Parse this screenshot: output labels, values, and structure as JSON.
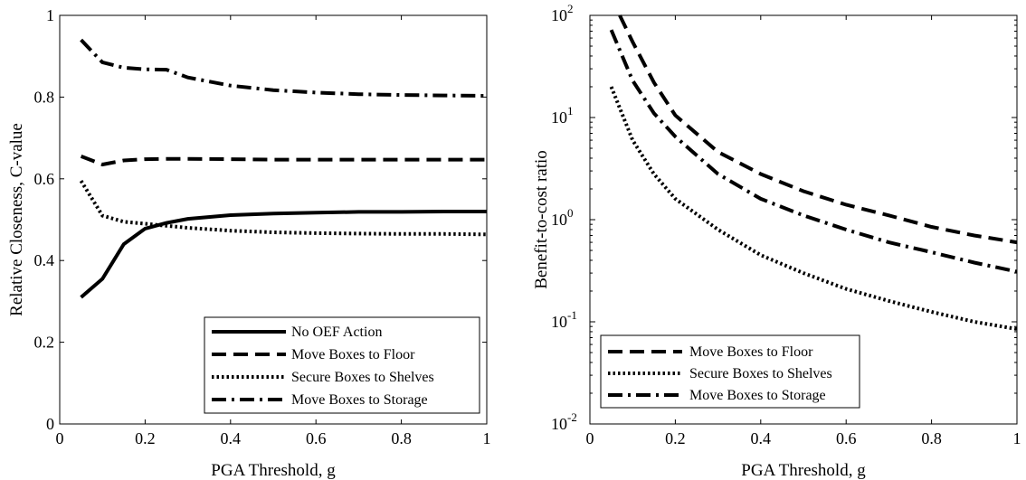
{
  "chart_data": [
    {
      "type": "line",
      "xlabel": "PGA Threshold, g",
      "ylabel": "Relative Closeness, C-value",
      "xlim": [
        0,
        1
      ],
      "ylim": [
        0,
        1
      ],
      "xticks": [
        "0",
        "0.2",
        "0.4",
        "0.6",
        "0.8",
        "1"
      ],
      "yticks": [
        "0",
        "0.2",
        "0.4",
        "0.6",
        "0.8",
        "1"
      ],
      "legend": "bottom-right",
      "grid": false,
      "series": [
        {
          "name": "No OEF Action",
          "style": "solid",
          "x": [
            0.05,
            0.1,
            0.15,
            0.2,
            0.25,
            0.3,
            0.4,
            0.5,
            0.6,
            0.7,
            0.8,
            0.9,
            1.0
          ],
          "y": [
            0.31,
            0.355,
            0.44,
            0.478,
            0.492,
            0.502,
            0.511,
            0.515,
            0.517,
            0.519,
            0.519,
            0.52,
            0.52
          ]
        },
        {
          "name": "Move Boxes to Floor",
          "style": "dashed",
          "x": [
            0.05,
            0.1,
            0.15,
            0.2,
            0.25,
            0.3,
            0.4,
            0.5,
            0.6,
            0.7,
            0.8,
            0.9,
            1.0
          ],
          "y": [
            0.655,
            0.635,
            0.645,
            0.648,
            0.649,
            0.649,
            0.648,
            0.647,
            0.647,
            0.647,
            0.647,
            0.647,
            0.647
          ]
        },
        {
          "name": "Secure Boxes to Shelves",
          "style": "dotted",
          "x": [
            0.05,
            0.1,
            0.15,
            0.2,
            0.25,
            0.3,
            0.4,
            0.5,
            0.6,
            0.7,
            0.8,
            0.9,
            1.0
          ],
          "y": [
            0.595,
            0.51,
            0.495,
            0.49,
            0.485,
            0.48,
            0.473,
            0.469,
            0.467,
            0.466,
            0.465,
            0.465,
            0.464
          ]
        },
        {
          "name": "Move Boxes to Storage",
          "style": "dashdot",
          "x": [
            0.05,
            0.1,
            0.15,
            0.2,
            0.25,
            0.3,
            0.4,
            0.5,
            0.6,
            0.7,
            0.8,
            0.9,
            1.0
          ],
          "y": [
            0.94,
            0.885,
            0.872,
            0.868,
            0.867,
            0.848,
            0.828,
            0.817,
            0.811,
            0.807,
            0.805,
            0.804,
            0.803
          ]
        }
      ]
    },
    {
      "type": "line",
      "xlabel": "PGA Threshold, g",
      "ylabel": "Benefit-to-cost ratio",
      "yscale": "log",
      "xlim": [
        0,
        1
      ],
      "ylim": [
        0.01,
        100
      ],
      "xticks": [
        "0",
        "0.2",
        "0.4",
        "0.6",
        "0.8",
        "1"
      ],
      "yticks": [
        "10-2",
        "10-1",
        "100",
        "101",
        "102"
      ],
      "legend": "bottom-left",
      "grid": false,
      "series": [
        {
          "name": "Move Boxes to Floor",
          "style": "dashed",
          "x": [
            0.07,
            0.1,
            0.15,
            0.2,
            0.3,
            0.4,
            0.5,
            0.6,
            0.7,
            0.8,
            0.9,
            1.0
          ],
          "y": [
            100,
            55,
            22,
            10.5,
            4.6,
            2.8,
            1.9,
            1.4,
            1.1,
            0.85,
            0.7,
            0.6
          ]
        },
        {
          "name": "Secure Boxes to Shelves",
          "style": "dotted",
          "x": [
            0.05,
            0.1,
            0.15,
            0.2,
            0.3,
            0.4,
            0.5,
            0.6,
            0.7,
            0.8,
            0.9,
            1.0
          ],
          "y": [
            20,
            6.0,
            2.8,
            1.6,
            0.8,
            0.45,
            0.3,
            0.21,
            0.16,
            0.125,
            0.1,
            0.085
          ]
        },
        {
          "name": "Move Boxes to Storage",
          "style": "dashdot",
          "x": [
            0.05,
            0.1,
            0.15,
            0.2,
            0.3,
            0.4,
            0.5,
            0.6,
            0.7,
            0.8,
            0.9,
            1.0
          ],
          "y": [
            72,
            23,
            11,
            6.5,
            2.8,
            1.6,
            1.1,
            0.8,
            0.6,
            0.48,
            0.38,
            0.31
          ]
        }
      ]
    }
  ]
}
